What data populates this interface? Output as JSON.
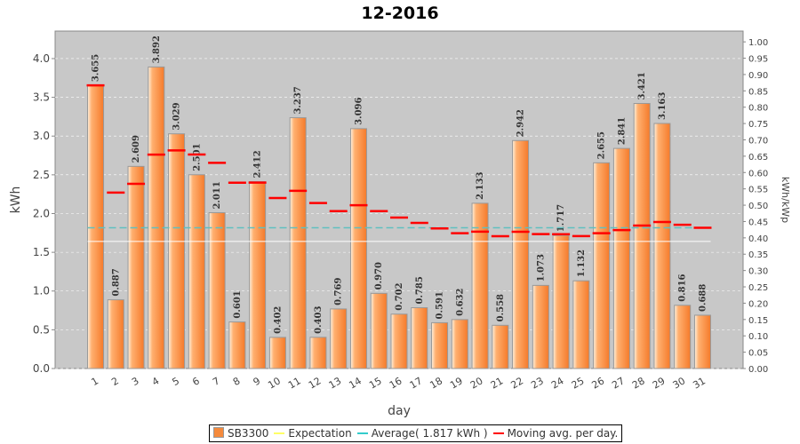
{
  "chart_data": {
    "type": "bar",
    "title": "12-2016",
    "xlabel": "day",
    "ylabel": "kWh",
    "y2label": "kWh/kWp",
    "ylim": [
      0,
      4.355
    ],
    "y2lim": [
      0,
      1.033
    ],
    "yticks": [
      "0.0",
      "0.5",
      "1.0",
      "1.5",
      "2.0",
      "2.5",
      "3.0",
      "3.5",
      "4.0"
    ],
    "y2ticks": [
      "0.00",
      "0.05",
      "0.10",
      "0.15",
      "0.20",
      "0.25",
      "0.30",
      "0.35",
      "0.40",
      "0.45",
      "0.50",
      "0.55",
      "0.60",
      "0.65",
      "0.70",
      "0.75",
      "0.80",
      "0.85",
      "0.90",
      "0.95",
      "1.00"
    ],
    "categories": [
      "1",
      "2",
      "3",
      "4",
      "5",
      "6",
      "7",
      "8",
      "9",
      "10",
      "11",
      "12",
      "13",
      "14",
      "15",
      "16",
      "17",
      "18",
      "19",
      "20",
      "21",
      "22",
      "23",
      "24",
      "25",
      "26",
      "27",
      "28",
      "29",
      "30",
      "31"
    ],
    "series": [
      {
        "name": "SB3300",
        "color": "#f58a3c",
        "values": [
          3.655,
          0.887,
          2.609,
          3.892,
          3.029,
          2.501,
          2.011,
          0.601,
          2.412,
          0.402,
          3.237,
          0.403,
          0.769,
          3.096,
          0.97,
          0.702,
          0.785,
          0.591,
          0.632,
          2.133,
          0.558,
          2.942,
          1.073,
          1.717,
          1.132,
          2.655,
          2.841,
          3.421,
          3.163,
          0.816,
          0.688
        ],
        "labels": [
          "3.655",
          "0.887",
          "2.609",
          "3.892",
          "3.029",
          "2.501",
          "2.011",
          "0.601",
          "2.412",
          "0.402",
          "3.237",
          "0.403",
          "0.769",
          "3.096",
          "0.970",
          "0.702",
          "0.785",
          "0.591",
          "0.632",
          "2.133",
          "0.558",
          "2.942",
          "1.073",
          "1.717",
          "1.132",
          "2.655",
          "2.841",
          "3.421",
          "3.163",
          "0.816",
          "0.688"
        ]
      },
      {
        "name": "Expectation",
        "color": "#ffff66",
        "value": 1.64
      },
      {
        "name": "Average( 1.817 kWh )",
        "color": "#33cccc",
        "value": 1.817
      },
      {
        "name": "Moving avg. per day.",
        "color": "#ff0000",
        "type": "cumulative-average"
      }
    ],
    "legend": "bottom"
  }
}
